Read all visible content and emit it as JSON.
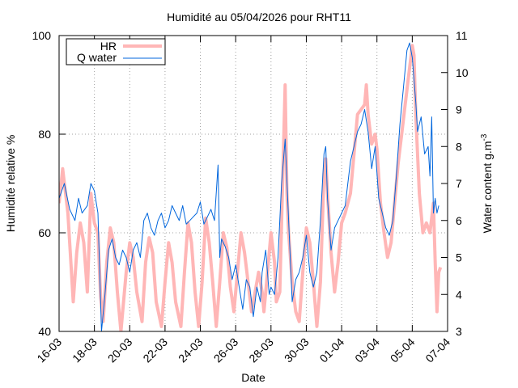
{
  "chart_data": {
    "type": "line",
    "title": "Humidité au 05/04/2026 pour RHT11",
    "xlabel": "Date",
    "ylabel": "Humidité relative %",
    "y2label": "Water content g.m",
    "y2label_sup": "-3",
    "x_ticks": [
      "16-03",
      "18-03",
      "20-03",
      "22-03",
      "24-03",
      "26-03",
      "28-03",
      "30-03",
      "01-04",
      "03-04",
      "05-04",
      "07-04"
    ],
    "x_range_days": [
      0,
      22
    ],
    "ylim": [
      40,
      100
    ],
    "y_ticks": [
      40,
      60,
      80,
      100
    ],
    "y2lim": [
      3,
      11
    ],
    "y2_ticks": [
      3,
      4,
      5,
      6,
      7,
      8,
      9,
      10,
      11
    ],
    "grid": true,
    "legend_position": "top-left",
    "series": [
      {
        "name": "HR",
        "axis": "left",
        "color": "#ffb6b6",
        "points": [
          [
            0,
            66
          ],
          [
            0.2,
            73
          ],
          [
            0.5,
            64
          ],
          [
            0.8,
            46
          ],
          [
            1.0,
            56
          ],
          [
            1.2,
            62
          ],
          [
            1.4,
            58
          ],
          [
            1.6,
            48
          ],
          [
            1.8,
            68
          ],
          [
            2.0,
            62
          ],
          [
            2.2,
            60
          ],
          [
            2.35,
            47
          ],
          [
            2.5,
            42
          ],
          [
            2.7,
            54
          ],
          [
            2.9,
            61
          ],
          [
            3.1,
            58
          ],
          [
            3.3,
            48
          ],
          [
            3.5,
            40
          ],
          [
            3.8,
            52
          ],
          [
            4.0,
            58
          ],
          [
            4.2,
            55
          ],
          [
            4.4,
            48
          ],
          [
            4.7,
            42
          ],
          [
            4.9,
            54
          ],
          [
            5.1,
            59
          ],
          [
            5.3,
            56
          ],
          [
            5.5,
            46
          ],
          [
            5.8,
            41
          ],
          [
            6.0,
            50
          ],
          [
            6.2,
            58
          ],
          [
            6.4,
            54
          ],
          [
            6.6,
            46
          ],
          [
            6.9,
            41
          ],
          [
            7.1,
            52
          ],
          [
            7.3,
            62
          ],
          [
            7.5,
            58
          ],
          [
            7.7,
            48
          ],
          [
            7.9,
            41
          ],
          [
            8.1,
            50
          ],
          [
            8.3,
            63
          ],
          [
            8.5,
            58
          ],
          [
            8.7,
            50
          ],
          [
            8.9,
            41
          ],
          [
            9.1,
            50
          ],
          [
            9.3,
            60
          ],
          [
            9.5,
            57
          ],
          [
            9.7,
            49
          ],
          [
            9.9,
            44
          ],
          [
            10.1,
            52
          ],
          [
            10.3,
            60
          ],
          [
            10.5,
            56
          ],
          [
            10.7,
            50
          ],
          [
            10.9,
            44
          ],
          [
            11.1,
            48
          ],
          [
            11.3,
            52
          ],
          [
            11.5,
            48
          ],
          [
            11.6,
            44
          ],
          [
            11.8,
            52
          ],
          [
            12.0,
            60
          ],
          [
            12.2,
            54
          ],
          [
            12.3,
            46
          ],
          [
            12.5,
            48
          ],
          [
            12.8,
            90
          ],
          [
            12.9,
            68
          ],
          [
            13.0,
            60
          ],
          [
            13.2,
            50
          ],
          [
            13.4,
            44
          ],
          [
            13.6,
            42
          ],
          [
            13.8,
            52
          ],
          [
            14.0,
            61
          ],
          [
            14.2,
            58
          ],
          [
            14.4,
            50
          ],
          [
            14.6,
            41
          ],
          [
            14.8,
            50
          ],
          [
            15.0,
            72
          ],
          [
            15.1,
            75
          ],
          [
            15.2,
            68
          ],
          [
            15.4,
            56
          ],
          [
            15.6,
            48
          ],
          [
            15.8,
            54
          ],
          [
            16.0,
            62
          ],
          [
            16.2,
            64
          ],
          [
            16.5,
            68
          ],
          [
            16.7,
            76
          ],
          [
            16.9,
            84
          ],
          [
            17.1,
            85
          ],
          [
            17.3,
            86
          ],
          [
            17.4,
            90
          ],
          [
            17.5,
            84
          ],
          [
            17.7,
            78
          ],
          [
            17.9,
            80
          ],
          [
            18.0,
            77
          ],
          [
            18.2,
            66
          ],
          [
            18.4,
            60
          ],
          [
            18.6,
            55
          ],
          [
            18.8,
            58
          ],
          [
            19.0,
            66
          ],
          [
            19.2,
            74
          ],
          [
            19.4,
            80
          ],
          [
            19.6,
            86
          ],
          [
            19.8,
            92
          ],
          [
            20.0,
            98
          ],
          [
            20.1,
            96
          ],
          [
            20.2,
            84
          ],
          [
            20.4,
            68
          ],
          [
            20.6,
            60
          ],
          [
            20.8,
            62
          ],
          [
            21.0,
            60
          ],
          [
            21.2,
            66
          ],
          [
            21.3,
            54
          ],
          [
            21.4,
            44
          ],
          [
            21.5,
            52
          ],
          [
            21.6,
            53
          ]
        ]
      },
      {
        "name": "Q water",
        "axis": "right",
        "color": "#0066dd",
        "points": [
          [
            0,
            6.6
          ],
          [
            0.3,
            7.0
          ],
          [
            0.6,
            6.3
          ],
          [
            0.9,
            6.0
          ],
          [
            1.1,
            6.6
          ],
          [
            1.3,
            6.2
          ],
          [
            1.6,
            6.4
          ],
          [
            1.8,
            7.0
          ],
          [
            2.0,
            6.8
          ],
          [
            2.2,
            6.2
          ],
          [
            2.4,
            3.0
          ],
          [
            2.6,
            4.0
          ],
          [
            2.8,
            5.2
          ],
          [
            3.0,
            5.5
          ],
          [
            3.2,
            5.0
          ],
          [
            3.4,
            4.8
          ],
          [
            3.6,
            5.2
          ],
          [
            3.8,
            5.0
          ],
          [
            4.0,
            4.6
          ],
          [
            4.2,
            5.2
          ],
          [
            4.4,
            5.4
          ],
          [
            4.6,
            5.0
          ],
          [
            4.8,
            6.0
          ],
          [
            5.0,
            6.2
          ],
          [
            5.2,
            5.8
          ],
          [
            5.4,
            5.6
          ],
          [
            5.6,
            6.0
          ],
          [
            5.8,
            6.2
          ],
          [
            6.0,
            5.8
          ],
          [
            6.2,
            6.0
          ],
          [
            6.4,
            6.4
          ],
          [
            6.6,
            6.2
          ],
          [
            6.8,
            6.0
          ],
          [
            7.0,
            6.4
          ],
          [
            7.2,
            5.9
          ],
          [
            7.4,
            6.0
          ],
          [
            7.6,
            6.1
          ],
          [
            7.8,
            6.2
          ],
          [
            8.0,
            6.5
          ],
          [
            8.2,
            5.9
          ],
          [
            8.4,
            6.1
          ],
          [
            8.6,
            6.3
          ],
          [
            8.8,
            6.0
          ],
          [
            9.0,
            7.5
          ],
          [
            9.1,
            5.0
          ],
          [
            9.2,
            5.5
          ],
          [
            9.4,
            5.3
          ],
          [
            9.6,
            5.0
          ],
          [
            9.8,
            4.4
          ],
          [
            10.0,
            4.8
          ],
          [
            10.2,
            4.2
          ],
          [
            10.4,
            3.6
          ],
          [
            10.6,
            4.4
          ],
          [
            10.8,
            4.2
          ],
          [
            11.0,
            3.4
          ],
          [
            11.2,
            4.2
          ],
          [
            11.4,
            3.8
          ],
          [
            11.5,
            4.6
          ],
          [
            11.7,
            5.2
          ],
          [
            11.9,
            4.0
          ],
          [
            12.0,
            4.2
          ],
          [
            12.2,
            4.0
          ],
          [
            12.4,
            5.0
          ],
          [
            12.6,
            7.0
          ],
          [
            12.8,
            8.2
          ],
          [
            13.0,
            6.0
          ],
          [
            13.2,
            3.8
          ],
          [
            13.4,
            4.4
          ],
          [
            13.6,
            4.6
          ],
          [
            13.8,
            5.0
          ],
          [
            14.0,
            5.6
          ],
          [
            14.2,
            4.6
          ],
          [
            14.4,
            4.2
          ],
          [
            14.6,
            4.6
          ],
          [
            14.8,
            6.0
          ],
          [
            15.0,
            7.8
          ],
          [
            15.1,
            8.0
          ],
          [
            15.2,
            6.6
          ],
          [
            15.4,
            5.2
          ],
          [
            15.6,
            5.8
          ],
          [
            15.8,
            6.0
          ],
          [
            16.0,
            6.2
          ],
          [
            16.2,
            6.4
          ],
          [
            16.5,
            7.6
          ],
          [
            16.7,
            8.0
          ],
          [
            16.9,
            8.4
          ],
          [
            17.1,
            8.6
          ],
          [
            17.3,
            9.0
          ],
          [
            17.5,
            8.4
          ],
          [
            17.7,
            7.4
          ],
          [
            17.9,
            8.0
          ],
          [
            18.1,
            6.6
          ],
          [
            18.3,
            6.2
          ],
          [
            18.5,
            5.8
          ],
          [
            18.7,
            5.6
          ],
          [
            18.9,
            6.0
          ],
          [
            19.1,
            7.2
          ],
          [
            19.3,
            8.6
          ],
          [
            19.5,
            9.6
          ],
          [
            19.7,
            10.6
          ],
          [
            19.85,
            10.8
          ],
          [
            20.0,
            10.4
          ],
          [
            20.2,
            9.2
          ],
          [
            20.3,
            8.4
          ],
          [
            20.5,
            8.8
          ],
          [
            20.7,
            7.8
          ],
          [
            20.9,
            8.0
          ],
          [
            21.0,
            7.2
          ],
          [
            21.1,
            8.8
          ],
          [
            21.2,
            6.2
          ],
          [
            21.3,
            6.6
          ],
          [
            21.4,
            6.2
          ],
          [
            21.5,
            6.4
          ]
        ]
      }
    ]
  }
}
